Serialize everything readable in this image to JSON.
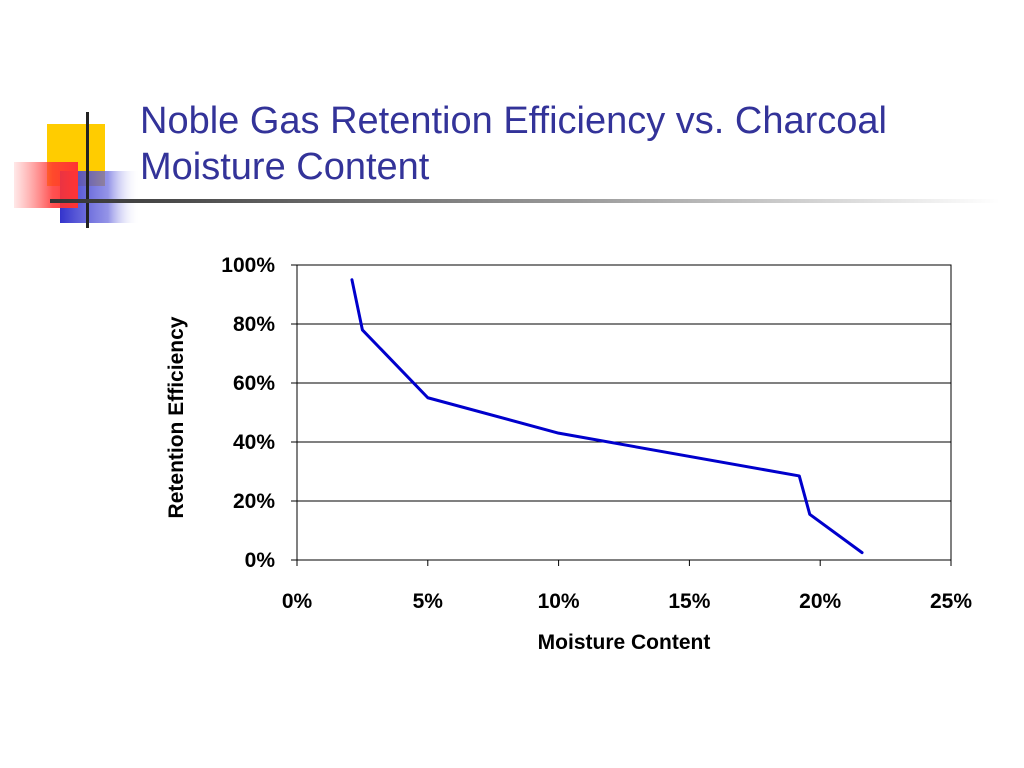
{
  "slide": {
    "title_line1": "Noble Gas Retention Efficiency vs. Charcoal",
    "title_line2": "Moisture Content",
    "colors": {
      "title": "#333399",
      "accent_yellow": "#FFCC00",
      "accent_red": "#FF3333",
      "accent_blue": "#3333CC",
      "rule": "#333333"
    }
  },
  "chart_data": {
    "type": "line",
    "title": "",
    "xlabel": "Moisture Content",
    "ylabel": "Retention Efficiency",
    "xlim": [
      0,
      0.25
    ],
    "ylim": [
      0,
      1.0
    ],
    "x_ticks": [
      0,
      0.05,
      0.1,
      0.15,
      0.2,
      0.25
    ],
    "x_tick_labels": [
      "0%",
      "5%",
      "10%",
      "15%",
      "20%",
      "25%"
    ],
    "y_ticks": [
      0,
      0.2,
      0.4,
      0.6,
      0.8,
      1.0
    ],
    "y_tick_labels": [
      "0%",
      "20%",
      "40%",
      "60%",
      "80%",
      "100%"
    ],
    "grid": {
      "horizontal": true,
      "vertical": false
    },
    "legend": "none",
    "series": [
      {
        "color": "#0000CC",
        "x": [
          0.021,
          0.025,
          0.05,
          0.1,
          0.192,
          0.196,
          0.216
        ],
        "y": [
          0.95,
          0.78,
          0.55,
          0.43,
          0.285,
          0.155,
          0.025
        ]
      }
    ]
  }
}
